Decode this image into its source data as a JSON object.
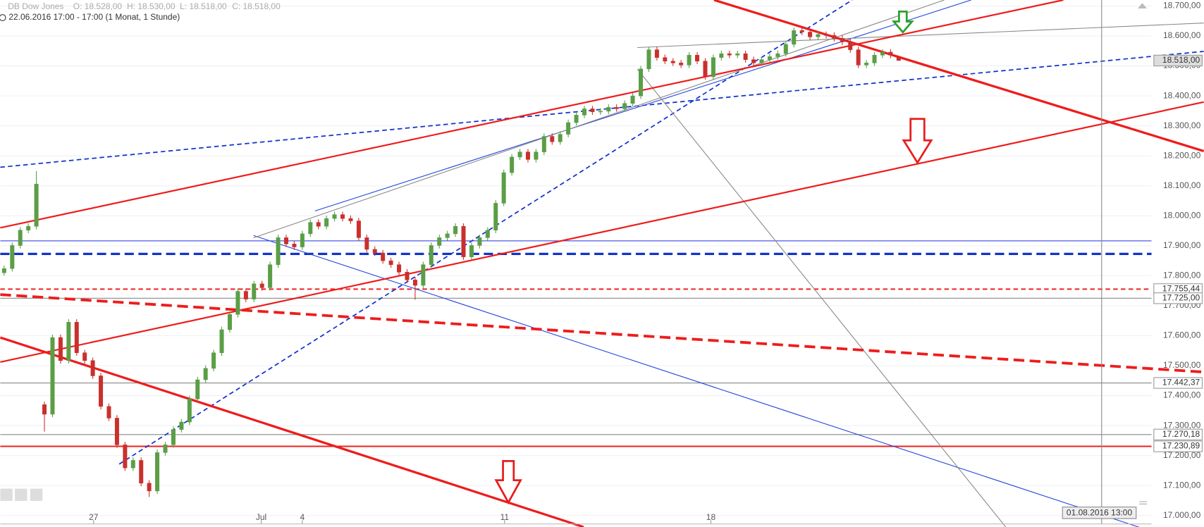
{
  "chart_data": {
    "type": "candlestick",
    "title": "DB Dow Jones",
    "ohlc_labels": [
      "O: 18.528,00",
      "H: 18.530,00",
      "L: 18.518,00",
      "C: 18.518,00"
    ],
    "subtitle": "22.06.2016 17:00 - 17:00 (1 Monat, 1 Stunde)",
    "cursor_label": "01.08.2016 13:00",
    "up_color": "#5a9e46",
    "down_color": "#c9302c",
    "grid": true,
    "xlim": [
      -0.48,
      142.38
    ],
    "xticks": [
      {
        "value": 11.1,
        "label": "27"
      },
      {
        "value": 31.9,
        "label": "Jul"
      },
      {
        "value": 37,
        "label": "4"
      },
      {
        "value": 62.1,
        "label": "11"
      },
      {
        "value": 87.7,
        "label": "18"
      }
    ],
    "ylim": [
      16972,
      18720
    ],
    "yticks": [
      {
        "value": 17000,
        "label": "17.000,00"
      },
      {
        "value": 17100,
        "label": "17.100,00"
      },
      {
        "value": 17200,
        "label": "17.200,00"
      },
      {
        "value": 17300,
        "label": "17.300,00"
      },
      {
        "value": 17400,
        "label": "17.400,00"
      },
      {
        "value": 17500,
        "label": "17.500,00"
      },
      {
        "value": 17600,
        "label": "17.600,00"
      },
      {
        "value": 17700,
        "label": "17.700,00"
      },
      {
        "value": 17800,
        "label": "17.800,00"
      },
      {
        "value": 17900,
        "label": "17.900,00"
      },
      {
        "value": 18000,
        "label": "18.000,00"
      },
      {
        "value": 18100,
        "label": "18.100,00"
      },
      {
        "value": 18200,
        "label": "18.200,00"
      },
      {
        "value": 18300,
        "label": "18.300,00"
      },
      {
        "value": 18400,
        "label": "18.400,00"
      },
      {
        "value": 18500,
        "label": "18.500,00"
      },
      {
        "value": 18600,
        "label": "18.600,00"
      },
      {
        "value": 18700,
        "label": "18.700,00"
      }
    ],
    "x": [
      0,
      1,
      2,
      3,
      4,
      5,
      6,
      7,
      8,
      9,
      10,
      11,
      12,
      13,
      14,
      15,
      16,
      17,
      18,
      19,
      20,
      21,
      22,
      23,
      24,
      25,
      26,
      27,
      28,
      29,
      30,
      31,
      32,
      33,
      34,
      35,
      36,
      37,
      38,
      39,
      40,
      41,
      42,
      43,
      44,
      45,
      46,
      47,
      48,
      49,
      50,
      51,
      52,
      53,
      54,
      55,
      56,
      57,
      58,
      59,
      60,
      61,
      62,
      63,
      64,
      65,
      66,
      67,
      68,
      69,
      70,
      71,
      72,
      73,
      74,
      75,
      76,
      77,
      78,
      79,
      80,
      81,
      82,
      83,
      84,
      85,
      86,
      87,
      88,
      89,
      90,
      91,
      92,
      93,
      94,
      95,
      96,
      97,
      98,
      99,
      100,
      101,
      102,
      103,
      104,
      105,
      106,
      107,
      108,
      109,
      110,
      111
    ],
    "open": [
      17810,
      17824,
      17901,
      17952,
      17965,
      17370,
      17338,
      17594,
      17517,
      17645,
      17543,
      17517,
      17466,
      17364,
      17325,
      17236,
      17159,
      17184,
      17108,
      17082,
      17210,
      17236,
      17287,
      17312,
      17389,
      17453,
      17491,
      17543,
      17620,
      17671,
      17748,
      17722,
      17773,
      17760,
      17837,
      17927,
      17906,
      17896,
      17940,
      17978,
      17965,
      17991,
      18004,
      17991,
      17983,
      17927,
      17888,
      17876,
      17850,
      17837,
      17812,
      17786,
      17768,
      17837,
      17901,
      17927,
      17940,
      17965,
      17863,
      17901,
      17927,
      17952,
      18042,
      18144,
      18196,
      18213,
      18188,
      18213,
      18265,
      18247,
      18272,
      18311,
      18336,
      18357,
      18347,
      18349,
      18362,
      18357,
      18375,
      18400,
      18490,
      18554,
      18528,
      18516,
      18510,
      18503,
      18536,
      18516,
      18464,
      18528,
      18541,
      18536,
      18541,
      18521,
      18510,
      18521,
      18531,
      18541,
      18572,
      18618,
      18613,
      18597,
      18605,
      18602,
      18592,
      18580,
      18554,
      18503,
      18510,
      18536,
      18546,
      18528
    ],
    "high": [
      17834,
      17911,
      17962,
      17975,
      18149,
      17380,
      17604,
      17604,
      17655,
      17655,
      17553,
      17527,
      17476,
      17374,
      17335,
      17246,
      17194,
      17194,
      17118,
      17220,
      17246,
      17297,
      17322,
      17399,
      17463,
      17501,
      17553,
      17630,
      17681,
      17758,
      17758,
      17783,
      17783,
      17847,
      17937,
      17937,
      17916,
      17950,
      17988,
      17988,
      18001,
      18014,
      18014,
      18001,
      17993,
      17937,
      17898,
      17886,
      17860,
      17847,
      17822,
      17796,
      17847,
      17911,
      17937,
      17950,
      17975,
      17975,
      17911,
      17937,
      17962,
      18052,
      18154,
      18206,
      18223,
      18223,
      18223,
      18275,
      18275,
      18282,
      18321,
      18346,
      18367,
      18367,
      18359,
      18372,
      18372,
      18385,
      18410,
      18500,
      18564,
      18564,
      18538,
      18526,
      18520,
      18546,
      18546,
      18526,
      18538,
      18551,
      18551,
      18551,
      18551,
      18531,
      18531,
      18541,
      18551,
      18582,
      18628,
      18628,
      18623,
      18615,
      18615,
      18612,
      18602,
      18590,
      18564,
      18520,
      18546,
      18556,
      18556,
      18530
    ],
    "low": [
      17800,
      17814,
      17891,
      17942,
      17955,
      17280,
      17328,
      17507,
      17507,
      17533,
      17507,
      17456,
      17354,
      17315,
      17226,
      17149,
      17149,
      17098,
      17062,
      17072,
      17200,
      17226,
      17277,
      17302,
      17379,
      17443,
      17481,
      17533,
      17610,
      17661,
      17712,
      17712,
      17750,
      17750,
      17827,
      17896,
      17886,
      17886,
      17930,
      17955,
      17955,
      17981,
      17981,
      17973,
      17917,
      17878,
      17866,
      17840,
      17827,
      17802,
      17776,
      17720,
      17758,
      17827,
      17891,
      17917,
      17930,
      17853,
      17853,
      17891,
      17917,
      17942,
      18032,
      18134,
      18186,
      18178,
      18178,
      18203,
      18237,
      18237,
      18262,
      18301,
      18326,
      18337,
      18337,
      18339,
      18347,
      18347,
      18365,
      18390,
      18480,
      18518,
      18506,
      18500,
      18493,
      18493,
      18506,
      18454,
      18454,
      18518,
      18526,
      18526,
      18511,
      18500,
      18500,
      18511,
      18521,
      18531,
      18562,
      18603,
      18587,
      18587,
      18592,
      18582,
      18570,
      18544,
      18493,
      18493,
      18500,
      18526,
      18526,
      18518
    ],
    "close": [
      17824,
      17901,
      17952,
      17965,
      18106,
      17338,
      17594,
      17517,
      17645,
      17543,
      17517,
      17466,
      17364,
      17325,
      17236,
      17159,
      17184,
      17108,
      17082,
      17210,
      17236,
      17287,
      17312,
      17389,
      17453,
      17491,
      17543,
      17620,
      17671,
      17748,
      17722,
      17773,
      17760,
      17837,
      17927,
      17906,
      17896,
      17940,
      17978,
      17965,
      17991,
      18004,
      17991,
      17983,
      17927,
      17888,
      17876,
      17850,
      17837,
      17812,
      17786,
      17768,
      17837,
      17901,
      17927,
      17940,
      17965,
      17863,
      17901,
      17927,
      17952,
      18042,
      18144,
      18196,
      18213,
      18188,
      18213,
      18265,
      18247,
      18272,
      18311,
      18336,
      18357,
      18347,
      18349,
      18362,
      18357,
      18375,
      18400,
      18490,
      18554,
      18528,
      18516,
      18510,
      18503,
      18536,
      18516,
      18464,
      18528,
      18541,
      18536,
      18541,
      18521,
      18510,
      18521,
      18531,
      18541,
      18572,
      18618,
      18613,
      18597,
      18605,
      18602,
      18592,
      18580,
      18554,
      18503,
      18510,
      18536,
      18546,
      18536,
      18518
    ],
    "last_price": {
      "value": 18518,
      "label": "18.518,00"
    },
    "levels": [
      {
        "value": 17755.44,
        "label": "17.755,44",
        "color": "#ee2222",
        "dash": true
      },
      {
        "value": 17725,
        "label": "17.725,00",
        "color": "#888888",
        "dash": false
      },
      {
        "value": 17442.37,
        "label": "17.442,37",
        "color": "#888888",
        "dash": false
      },
      {
        "value": 17270.18,
        "label": "17.270,18",
        "color": "#888888",
        "dash": false
      },
      {
        "value": 17230.89,
        "label": "17.230,89",
        "color": "#ee2222",
        "dash": false
      }
    ]
  }
}
